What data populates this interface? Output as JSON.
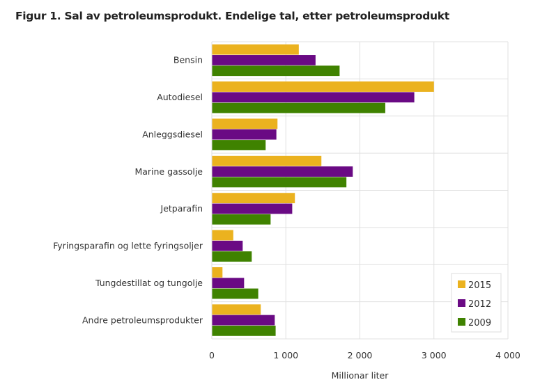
{
  "chart_data": {
    "type": "bar",
    "orientation": "horizontal",
    "title": "Figur 1. Sal av petroleumsprodukt. Endelige tal, etter petroleumsprodukt",
    "xlabel": "Millionar liter",
    "ylabel": "",
    "xlim": [
      0,
      4000
    ],
    "xticks": [
      0,
      1000,
      2000,
      3000,
      4000
    ],
    "xtick_labels": [
      "0",
      "1 000",
      "2 000",
      "3 000",
      "4 000"
    ],
    "grid": true,
    "legend_position": "bottom-right",
    "categories": [
      "Bensin",
      "Autodiesel",
      "Anleggsdiesel",
      "Marine gassolje",
      "Jetparafin",
      "Fyringsparafin og lette fyringsoljer",
      "Tungdestillat og tungolje",
      "Andre petroleumsprodukter"
    ],
    "series": [
      {
        "name": "2015",
        "color": "#ebb21f",
        "values": [
          1175,
          3000,
          887,
          1480,
          1122,
          290,
          144,
          661
        ]
      },
      {
        "name": "2012",
        "color": "#6a0a84",
        "values": [
          1401,
          2735,
          872,
          1904,
          1086,
          417,
          436,
          850
        ]
      },
      {
        "name": "2009",
        "color": "#3f8200",
        "values": [
          1726,
          2343,
          727,
          1818,
          794,
          539,
          627,
          862
        ]
      }
    ]
  }
}
